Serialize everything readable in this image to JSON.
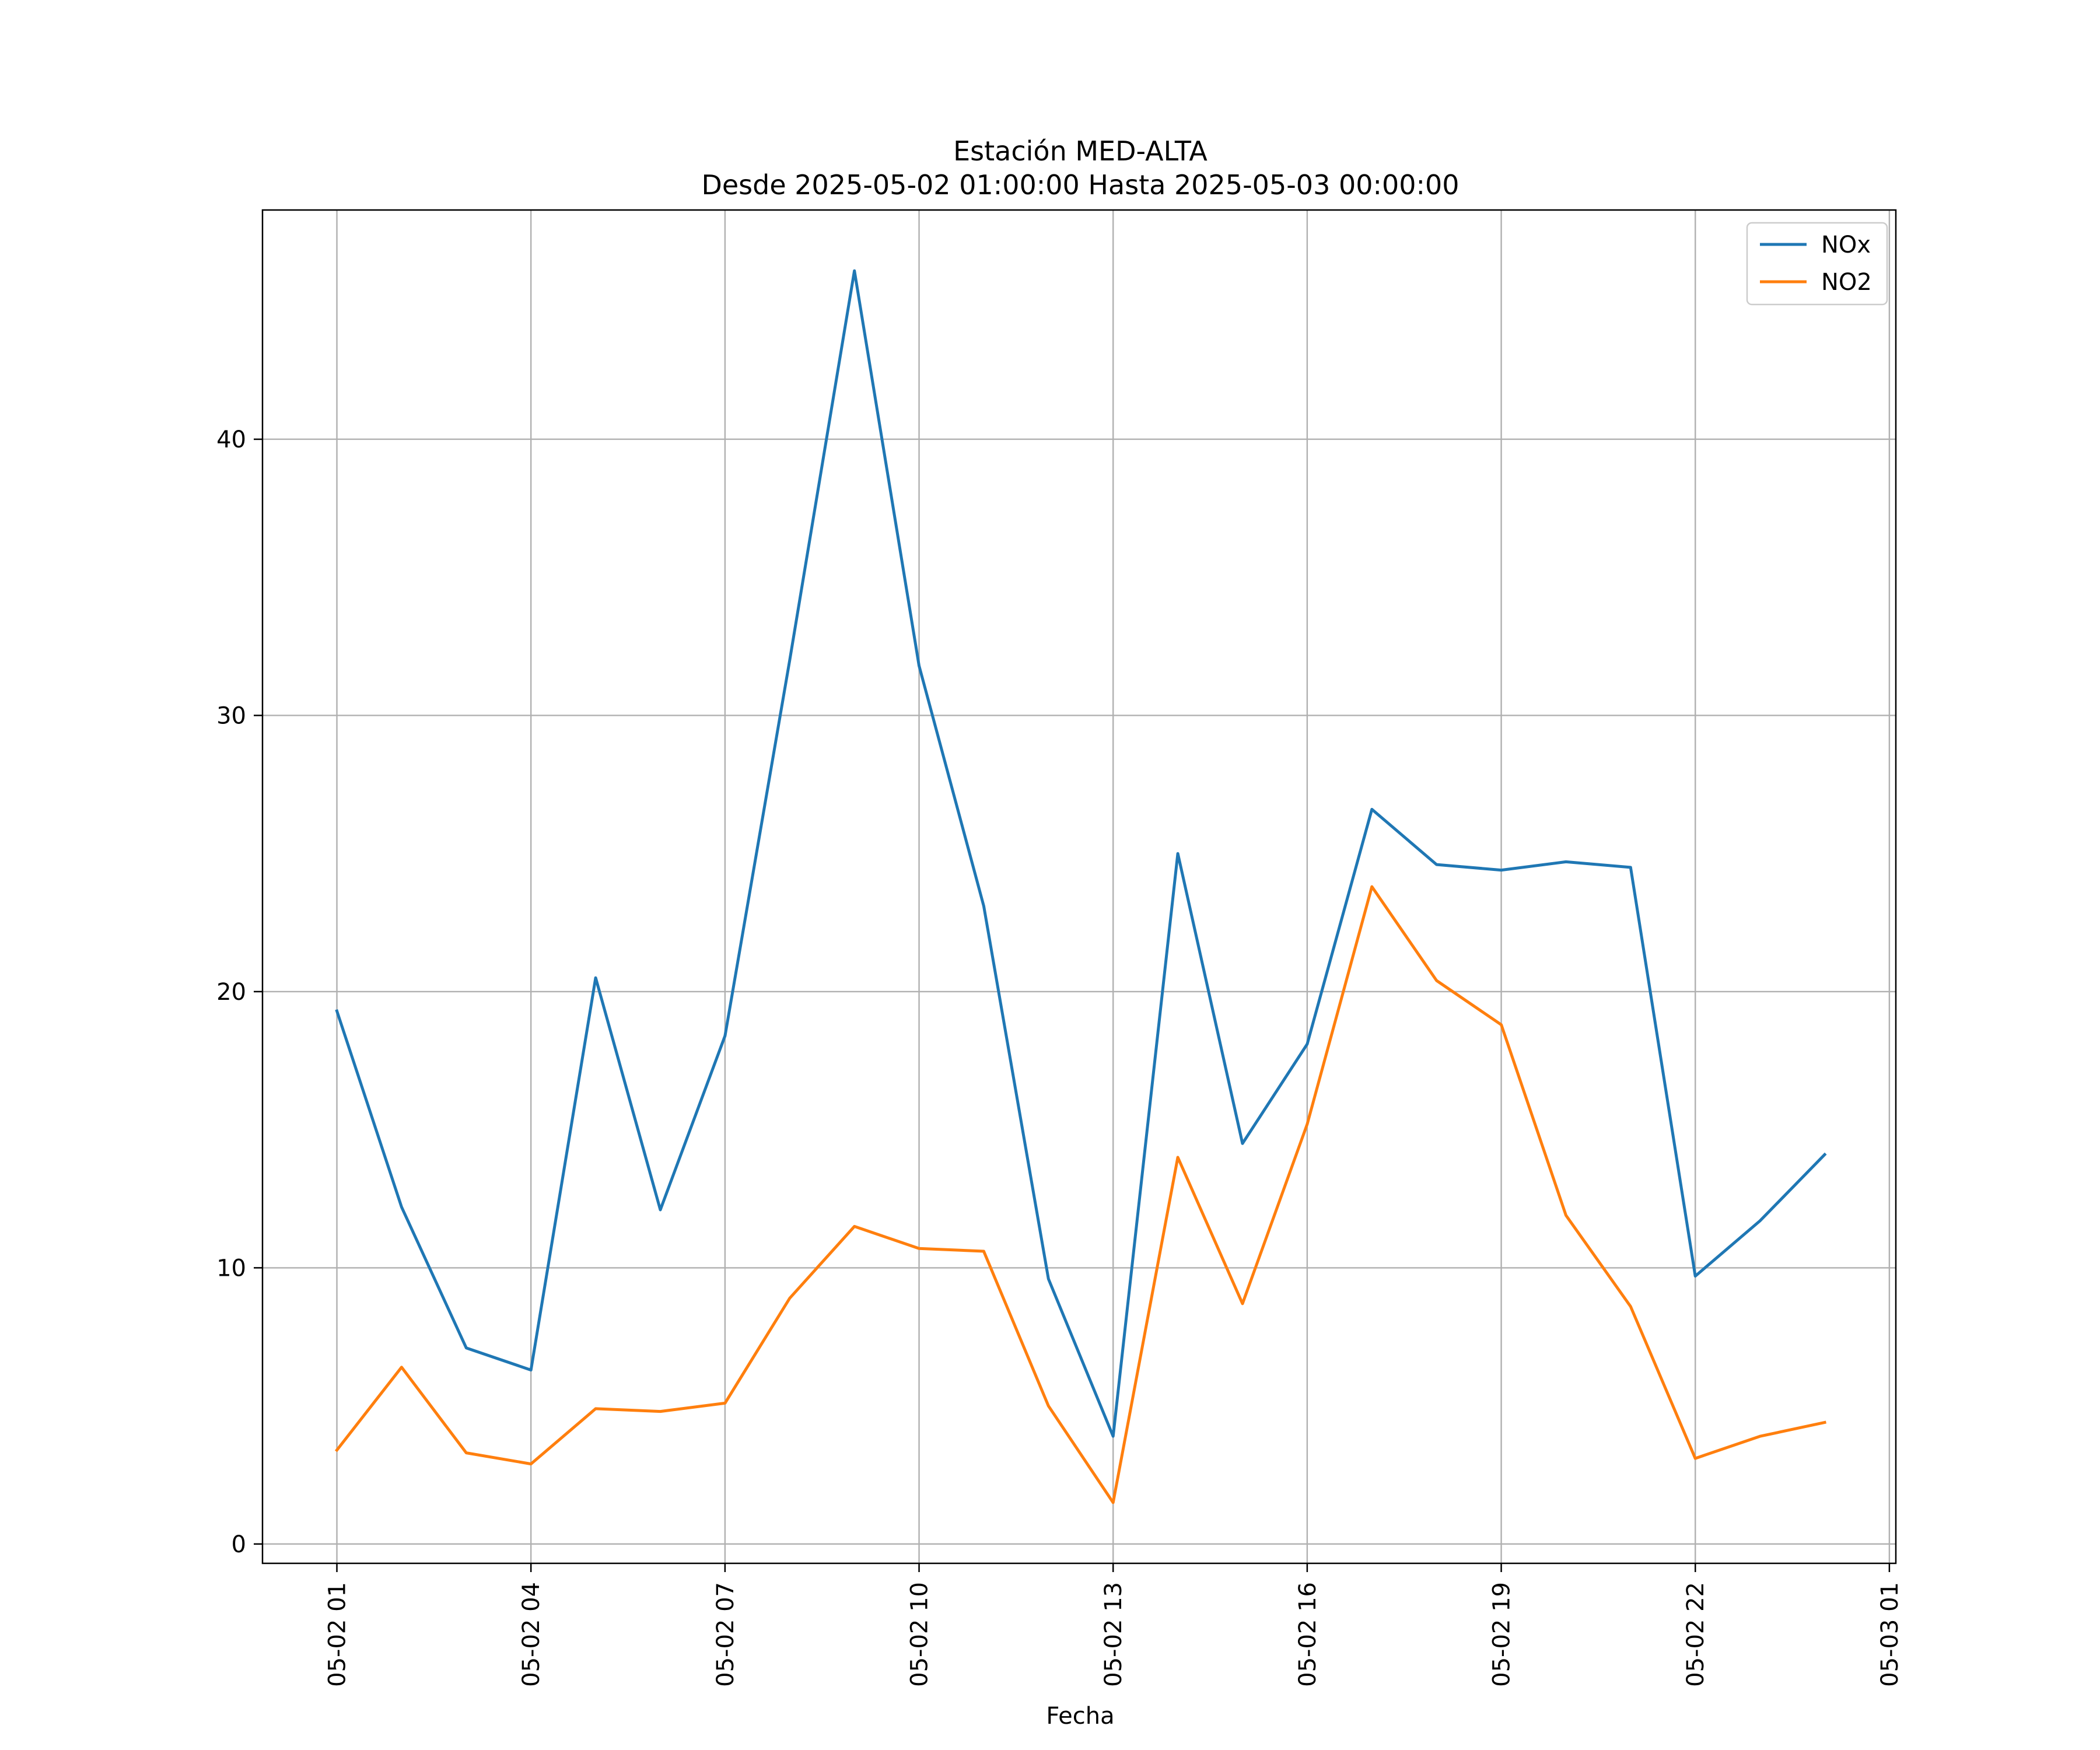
{
  "chart_data": {
    "type": "line",
    "title": "Estación MED-ALTA",
    "subtitle": "Desde 2025-05-02 01:00:00 Hasta 2025-05-03 00:00:00",
    "xlabel": "Fecha",
    "ylabel": "",
    "x": [
      "2025-05-02 01:00",
      "2025-05-02 02:00",
      "2025-05-02 03:00",
      "2025-05-02 04:00",
      "2025-05-02 05:00",
      "2025-05-02 06:00",
      "2025-05-02 07:00",
      "2025-05-02 08:00",
      "2025-05-02 09:00",
      "2025-05-02 10:00",
      "2025-05-02 11:00",
      "2025-05-02 12:00",
      "2025-05-02 13:00",
      "2025-05-02 14:00",
      "2025-05-02 15:00",
      "2025-05-02 16:00",
      "2025-05-02 17:00",
      "2025-05-02 18:00",
      "2025-05-02 19:00",
      "2025-05-02 20:00",
      "2025-05-02 21:00",
      "2025-05-02 22:00",
      "2025-05-02 23:00",
      "2025-05-03 00:00"
    ],
    "series": [
      {
        "name": "NOx",
        "color": "#1f77b4",
        "values": [
          19.3,
          12.2,
          7.1,
          6.3,
          20.5,
          12.1,
          18.4,
          32.0,
          46.1,
          31.8,
          23.1,
          9.6,
          3.9,
          25.0,
          14.5,
          18.1,
          26.6,
          24.6,
          24.4,
          24.7,
          24.5,
          9.7,
          11.7,
          14.1
        ]
      },
      {
        "name": "NO2",
        "color": "#ff7f0e",
        "values": [
          3.4,
          6.4,
          3.3,
          2.9,
          4.9,
          4.8,
          5.1,
          8.9,
          11.5,
          10.7,
          10.6,
          5.0,
          1.5,
          14.0,
          8.7,
          15.2,
          23.8,
          20.4,
          18.8,
          11.9,
          8.6,
          3.1,
          3.9,
          4.4
        ]
      }
    ],
    "x_ticks": [
      "05-02 01",
      "05-02 04",
      "05-02 07",
      "05-02 10",
      "05-02 13",
      "05-02 16",
      "05-02 19",
      "05-02 22",
      "05-03 01"
    ],
    "x_tick_hours": [
      0,
      3,
      6,
      9,
      12,
      15,
      18,
      21,
      24
    ],
    "y_ticks": [
      0,
      10,
      20,
      30,
      40
    ],
    "xlim_hours": [
      -1.15,
      24.1
    ],
    "ylim": [
      -0.7,
      48.3
    ],
    "grid": true,
    "legend": "top-right"
  }
}
